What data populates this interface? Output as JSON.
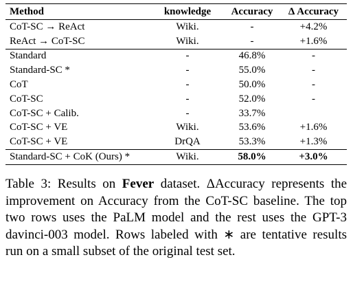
{
  "table": {
    "header": [
      "Method",
      "knowledge",
      "Accuracy",
      "Δ Accuracy"
    ],
    "rows": [
      [
        "CoT-SC → ReAct",
        "Wiki.",
        "-",
        "+4.2%"
      ],
      [
        "ReAct → CoT-SC",
        "Wiki.",
        "-",
        "+1.6%"
      ],
      [
        "Standard",
        "-",
        "46.8%",
        "-"
      ],
      [
        "Standard-SC *",
        "-",
        "55.0%",
        "-"
      ],
      [
        "CoT",
        "-",
        "50.0%",
        "-"
      ],
      [
        "CoT-SC",
        "-",
        "52.0%",
        "-"
      ],
      [
        "CoT-SC + Calib.",
        "-",
        "33.7%",
        null
      ],
      [
        "CoT-SC + VE",
        "Wiki.",
        "53.6%",
        "+1.6%"
      ],
      [
        "CoT-SC + VE",
        "DrQA",
        "53.3%",
        "+1.3%"
      ],
      [
        "Standard-SC + CoK (Ours) *",
        "Wiki.",
        "58.0%",
        "+3.0%"
      ]
    ]
  },
  "caption": {
    "label": "Table 3:",
    "before": "Results on",
    "bold": "Fever",
    "after": "dataset. ΔAccuracy represents the improvement on Accuracy from the CoT-SC baseline. The top two rows uses the PaLM model and the rest uses the GPT-3 davinci-003 model. Rows labeled with ∗ are tentative results run on a small subset of the original test set."
  }
}
